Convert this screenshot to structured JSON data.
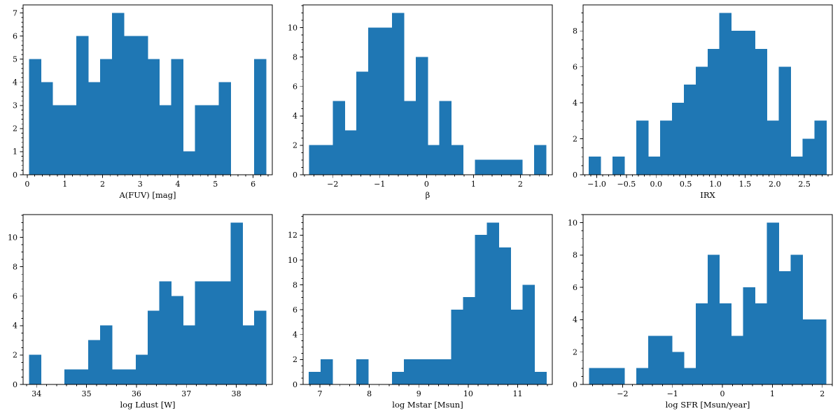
{
  "figure": {
    "background_color": "#ffffff",
    "bar_color": "#1f77b4",
    "axis_color": "#000000",
    "layout": "2x3 grid of histograms"
  },
  "chart_data": [
    {
      "type": "bar",
      "subtype": "histogram",
      "panel": "top-left",
      "xlabel": "A(FUV) [mag]",
      "ylabel": "",
      "bin_start": 0.05,
      "bin_width": 0.315,
      "counts": [
        5,
        4,
        3,
        3,
        6,
        4,
        5,
        7,
        6,
        6,
        5,
        3,
        5,
        1,
        3,
        3,
        4,
        0,
        0,
        5
      ],
      "total_n": 78,
      "xlim": [
        -0.11,
        6.51
      ],
      "ylim": [
        0,
        7.35
      ],
      "x_ticks": [
        0,
        1,
        2,
        3,
        4,
        5,
        6
      ],
      "x_tick_labels": [
        "0",
        "1",
        "2",
        "3",
        "4",
        "5",
        "6"
      ],
      "x_minor_step": 0.2,
      "y_ticks": [
        0,
        1,
        2,
        3,
        4,
        5,
        6,
        7
      ],
      "y_tick_labels": [
        "0",
        "1",
        "2",
        "3",
        "4",
        "5",
        "6",
        "7"
      ],
      "y_minor_step": 0.2,
      "grid": false,
      "legend": null
    },
    {
      "type": "bar",
      "subtype": "histogram",
      "panel": "top-middle",
      "xlabel": "β",
      "ylabel": "",
      "bin_start": -2.5,
      "bin_width": 0.2525,
      "counts": [
        2,
        2,
        5,
        3,
        7,
        10,
        10,
        11,
        5,
        8,
        2,
        5,
        2,
        0,
        1,
        1,
        1,
        1,
        0,
        2
      ],
      "total_n": 78,
      "xlim": [
        -2.63,
        2.68
      ],
      "ylim": [
        0,
        11.55
      ],
      "x_ticks": [
        -2,
        -1,
        0,
        1,
        2
      ],
      "x_tick_labels": [
        "−2",
        "−1",
        "0",
        "1",
        "2"
      ],
      "x_minor_step": 0.2,
      "y_ticks": [
        0,
        2,
        4,
        6,
        8,
        10
      ],
      "y_tick_labels": [
        "0",
        "2",
        "4",
        "6",
        "8",
        "10"
      ],
      "y_minor_step": 0.5,
      "grid": false,
      "legend": null
    },
    {
      "type": "bar",
      "subtype": "histogram",
      "panel": "top-right",
      "xlabel": "IRX",
      "ylabel": "",
      "bin_start": -1.13,
      "bin_width": 0.2,
      "counts": [
        1,
        0,
        1,
        0,
        3,
        1,
        3,
        4,
        5,
        6,
        7,
        9,
        8,
        8,
        7,
        3,
        6,
        1,
        2,
        3
      ],
      "total_n": 78,
      "xlim": [
        -1.23,
        2.97
      ],
      "ylim": [
        0,
        9.45
      ],
      "x_ticks": [
        -1.0,
        -0.5,
        0.0,
        0.5,
        1.0,
        1.5,
        2.0,
        2.5,
        3.0
      ],
      "x_tick_labels": [
        "−1.0",
        "−0.5",
        "0.0",
        "0.5",
        "1.0",
        "1.5",
        "2.0",
        "2.5",
        "3.0"
      ],
      "x_minor_step": 0.1,
      "y_ticks": [
        0,
        2,
        4,
        6,
        8
      ],
      "y_tick_labels": [
        "0",
        "2",
        "4",
        "6",
        "8"
      ],
      "y_minor_step": 0.5,
      "grid": false,
      "legend": null
    },
    {
      "type": "bar",
      "subtype": "histogram",
      "panel": "bottom-left",
      "xlabel": "log Ldust [W]",
      "ylabel": "",
      "bin_start": 33.85,
      "bin_width": 0.2375,
      "counts": [
        2,
        0,
        0,
        1,
        1,
        3,
        4,
        1,
        1,
        2,
        5,
        7,
        6,
        4,
        7,
        7,
        7,
        11,
        4,
        5
      ],
      "total_n": 78,
      "xlim": [
        33.73,
        38.72
      ],
      "ylim": [
        0,
        11.55
      ],
      "x_ticks": [
        34,
        35,
        36,
        37,
        38
      ],
      "x_tick_labels": [
        "34",
        "35",
        "36",
        "37",
        "38"
      ],
      "x_minor_step": 0.2,
      "y_ticks": [
        0,
        2,
        4,
        6,
        8,
        10
      ],
      "y_tick_labels": [
        "0",
        "2",
        "4",
        "6",
        "8",
        "10"
      ],
      "y_minor_step": 0.5,
      "grid": false,
      "legend": null
    },
    {
      "type": "bar",
      "subtype": "histogram",
      "panel": "bottom-middle",
      "xlabel": "log Mstar [Msun]",
      "ylabel": "",
      "bin_start": 6.78,
      "bin_width": 0.24,
      "counts": [
        1,
        2,
        0,
        0,
        2,
        0,
        0,
        1,
        2,
        2,
        2,
        2,
        6,
        7,
        12,
        13,
        11,
        6,
        8,
        1
      ],
      "total_n": 78,
      "xlim": [
        6.66,
        11.7
      ],
      "ylim": [
        0,
        13.65
      ],
      "x_ticks": [
        7,
        8,
        9,
        10,
        11
      ],
      "x_tick_labels": [
        "7",
        "8",
        "9",
        "10",
        "11"
      ],
      "x_minor_step": 0.2,
      "y_ticks": [
        0,
        2,
        4,
        6,
        8,
        10,
        12
      ],
      "y_tick_labels": [
        "0",
        "2",
        "4",
        "6",
        "8",
        "10",
        "12"
      ],
      "y_minor_step": 0.5,
      "grid": false,
      "legend": null
    },
    {
      "type": "bar",
      "subtype": "histogram",
      "panel": "bottom-right",
      "xlabel": "log SFR [Msun/year]",
      "ylabel": "",
      "bin_start": -2.67,
      "bin_width": 0.2375,
      "counts": [
        1,
        1,
        1,
        0,
        1,
        3,
        3,
        2,
        1,
        5,
        8,
        5,
        3,
        6,
        5,
        10,
        7,
        8,
        4,
        4
      ],
      "total_n": 78,
      "xlim": [
        -2.79,
        2.2
      ],
      "ylim": [
        0,
        10.5
      ],
      "x_ticks": [
        -2,
        -1,
        0,
        1,
        2
      ],
      "x_tick_labels": [
        "−2",
        "−1",
        "0",
        "1",
        "2"
      ],
      "x_minor_step": 0.2,
      "y_ticks": [
        0,
        2,
        4,
        6,
        8,
        10
      ],
      "y_tick_labels": [
        "0",
        "2",
        "4",
        "6",
        "8",
        "10"
      ],
      "y_minor_step": 0.5,
      "grid": false,
      "legend": null
    }
  ]
}
